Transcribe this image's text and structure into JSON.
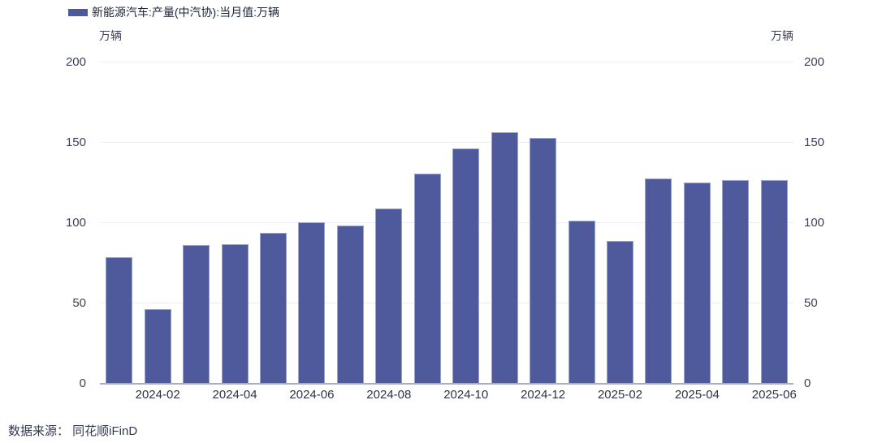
{
  "legend": {
    "label": "新能源汽车:产量(中汽协):当月值:万辆"
  },
  "axes": {
    "unit_left": "万辆",
    "unit_right": "万辆"
  },
  "footer": {
    "source": "数据来源： 同花顺iFinD"
  },
  "colors": {
    "bar": "#4e5a9b",
    "bar_border": "#9aa2ce",
    "grid": "#ecedf5",
    "axis_line": "#a7aecb"
  },
  "chart_data": {
    "type": "bar",
    "title": "新能源汽车:产量(中汽协):当月值:万辆",
    "ylabel": "万辆",
    "legend_position": "top-left",
    "grid": true,
    "categories": [
      "2024-01",
      "2024-02",
      "2024-03",
      "2024-04",
      "2024-05",
      "2024-06",
      "2024-07",
      "2024-08",
      "2024-09",
      "2024-10",
      "2024-11",
      "2024-12",
      "2025-01",
      "2025-02",
      "2025-03",
      "2025-04",
      "2025-05",
      "2025-06"
    ],
    "values": [
      78.7,
      46.4,
      86.3,
      87.0,
      94.0,
      100.3,
      98.4,
      109.2,
      130.7,
      146.3,
      156.6,
      153.1,
      101.5,
      88.8,
      127.7,
      125.1,
      127.0,
      126.8
    ],
    "x_tick_labels": [
      "2024-02",
      "2024-04",
      "2024-06",
      "2024-08",
      "2024-10",
      "2024-12",
      "2025-02",
      "2025-04",
      "2025-06"
    ],
    "y_ticks": [
      0,
      50,
      100,
      150,
      200
    ],
    "ylim": [
      0,
      200
    ]
  }
}
